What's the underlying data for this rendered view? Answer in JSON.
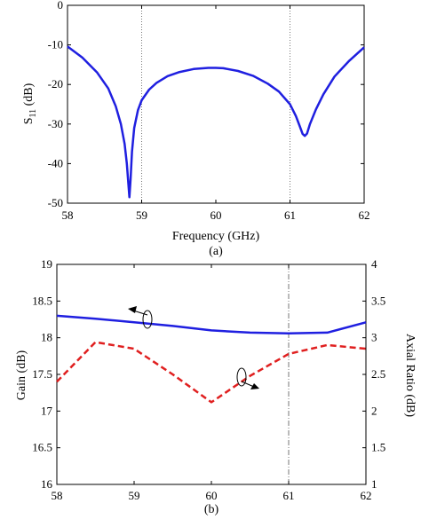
{
  "chart_data": [
    {
      "type": "line",
      "panel_label": "(a)",
      "title": "",
      "xlabel": "Frequency (GHz)",
      "ylabel_main": "S",
      "ylabel_sub": "11",
      "ylabel_unit": " (dB)",
      "xlim": [
        58,
        62
      ],
      "ylim": [
        -50,
        0
      ],
      "xticks": [
        58,
        59,
        60,
        61,
        62
      ],
      "yticks": [
        0,
        -10,
        -20,
        -30,
        -40,
        -50
      ],
      "grid": "vertical dotted lines at 59 and 61 GHz",
      "series": [
        {
          "color": "#1f1fe0",
          "style": "solid",
          "x": [
            58,
            58.2,
            58.4,
            58.55,
            58.65,
            58.72,
            58.77,
            58.8,
            58.82,
            58.835,
            58.85,
            58.87,
            58.9,
            58.95,
            59,
            59.1,
            59.2,
            59.35,
            59.5,
            59.7,
            59.9,
            60,
            60.1,
            60.3,
            60.5,
            60.7,
            60.85,
            61,
            61.08,
            61.13,
            61.17,
            61.2,
            61.23,
            61.27,
            61.35,
            61.45,
            61.6,
            61.8,
            62
          ],
          "y": [
            -10.4,
            -13.2,
            -17.0,
            -21.0,
            -25.5,
            -30.0,
            -35.0,
            -40.0,
            -45.0,
            -48.5,
            -44.0,
            -37.0,
            -31.0,
            -26.5,
            -24.0,
            -21.3,
            -19.6,
            -17.9,
            -16.9,
            -16.1,
            -15.8,
            -15.8,
            -15.9,
            -16.6,
            -17.8,
            -19.8,
            -21.8,
            -25.0,
            -28.0,
            -30.5,
            -32.5,
            -33.0,
            -32.4,
            -30.0,
            -26.3,
            -22.5,
            -18.0,
            -14.0,
            -10.6
          ]
        }
      ]
    },
    {
      "type": "line",
      "panel_label": "(b)",
      "title": "",
      "xlabel": "",
      "ylabel_left": "Gain (dB)",
      "ylabel_right": "Axial Ratio (dB)",
      "xlim": [
        58,
        62
      ],
      "ylim_left": [
        16,
        19
      ],
      "ylim_right": [
        1,
        4
      ],
      "xticks": [
        58,
        59,
        60,
        61,
        62
      ],
      "yticks_left": [
        19,
        18.5,
        18,
        17.5,
        17,
        16.5,
        16
      ],
      "yticks_right": [
        4,
        3.5,
        3,
        2.5,
        2,
        1.5,
        1
      ],
      "grid": "vertical dash-dot line at 61 GHz",
      "series": [
        {
          "color": "#1f1fe0",
          "style": "solid",
          "axis": "left",
          "x": [
            58,
            58.5,
            59,
            59.5,
            60,
            60.5,
            61,
            61.5,
            62
          ],
          "y": [
            18.3,
            18.26,
            18.21,
            18.16,
            18.1,
            18.07,
            18.06,
            18.07,
            18.21
          ]
        },
        {
          "color": "#e01f1f",
          "style": "dashed",
          "axis": "right",
          "x": [
            58,
            58.5,
            59,
            59.5,
            60,
            60.5,
            61,
            61.5,
            62
          ],
          "y": [
            2.4,
            2.94,
            2.85,
            2.5,
            2.12,
            2.48,
            2.78,
            2.9,
            2.85
          ]
        }
      ]
    }
  ],
  "figure_caption": "(a)"
}
